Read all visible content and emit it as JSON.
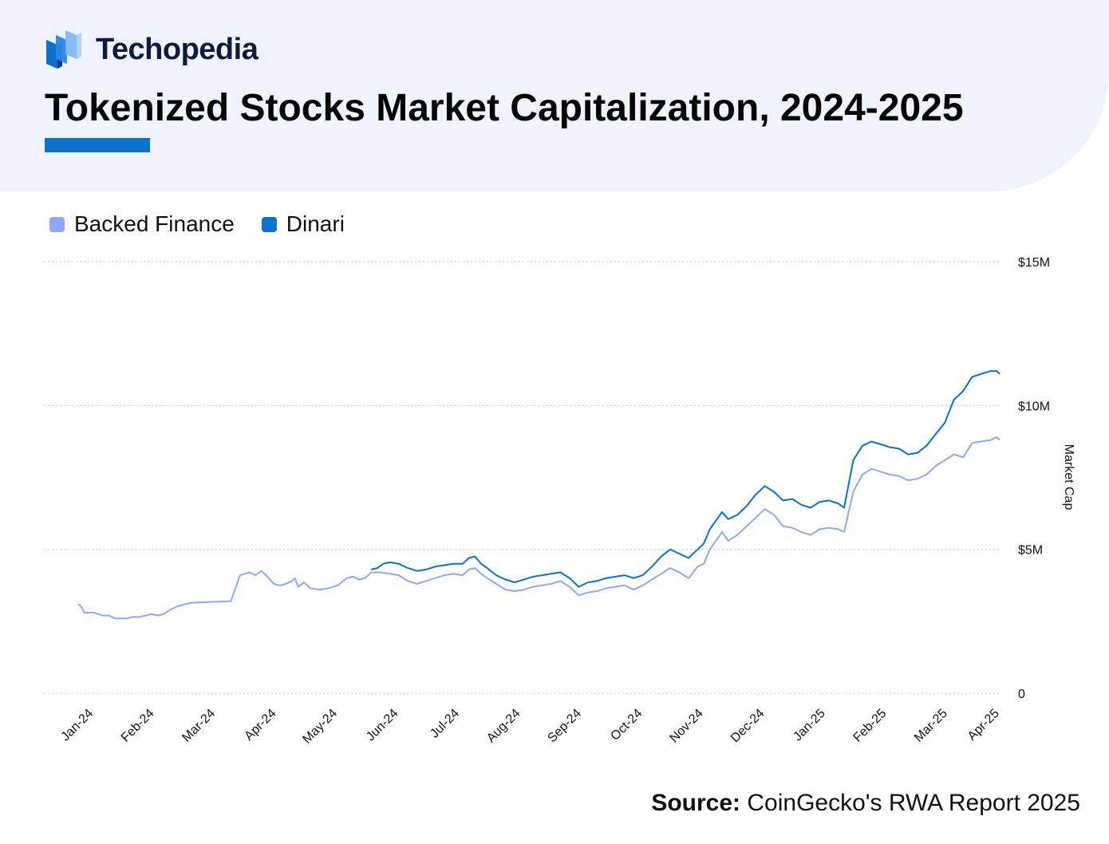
{
  "brand": {
    "name": "Techopedia"
  },
  "title": "Tokenized Stocks Market Capitalization, 2024-2025",
  "source": {
    "label": "Source:",
    "text": "CoinGecko's RWA Report 2025"
  },
  "colors": {
    "backed": "#8ca8f6",
    "dinari": "#0a72c8",
    "accent": "#0a72c8",
    "header_bg": "#eef3fd"
  },
  "chart_data": {
    "type": "line",
    "title": "Tokenized Stocks Market Capitalization, 2024-2025",
    "xlabel": "",
    "ylabel": "Market Cap",
    "ylim": [
      0,
      15
    ],
    "y_unit": "$M",
    "yticks": [
      {
        "value": 0,
        "label": "0"
      },
      {
        "value": 5,
        "label": "$5M"
      },
      {
        "value": 10,
        "label": "$10M"
      },
      {
        "value": 15,
        "label": "$15M"
      }
    ],
    "xlim": [
      0,
      15.6
    ],
    "xticks": [
      {
        "value": 0.75,
        "label": "Jan-24"
      },
      {
        "value": 1.75,
        "label": "Feb-24"
      },
      {
        "value": 2.75,
        "label": "Mar-24"
      },
      {
        "value": 3.75,
        "label": "Apr-24"
      },
      {
        "value": 4.75,
        "label": "May-24"
      },
      {
        "value": 5.75,
        "label": "Jun-24"
      },
      {
        "value": 6.75,
        "label": "Jul-24"
      },
      {
        "value": 7.75,
        "label": "Aug-24"
      },
      {
        "value": 8.75,
        "label": "Sep-24"
      },
      {
        "value": 9.75,
        "label": "Oct-24"
      },
      {
        "value": 10.75,
        "label": "Nov-24"
      },
      {
        "value": 11.75,
        "label": "Dec-24"
      },
      {
        "value": 12.75,
        "label": "Jan-25"
      },
      {
        "value": 13.75,
        "label": "Feb-25"
      },
      {
        "value": 14.75,
        "label": "Mar-25"
      },
      {
        "value": 15.6,
        "label": "Apr-25"
      }
    ],
    "grid": true,
    "legend_position": "top-left",
    "series": [
      {
        "name": "Backed Finance",
        "color": "#8ca8f6",
        "points": [
          [
            0.5,
            3.1
          ],
          [
            0.55,
            3.0
          ],
          [
            0.6,
            2.8
          ],
          [
            0.75,
            2.8
          ],
          [
            0.9,
            2.7
          ],
          [
            1.0,
            2.7
          ],
          [
            1.1,
            2.6
          ],
          [
            1.2,
            2.6
          ],
          [
            1.3,
            2.6
          ],
          [
            1.4,
            2.65
          ],
          [
            1.5,
            2.65
          ],
          [
            1.6,
            2.7
          ],
          [
            1.7,
            2.75
          ],
          [
            1.8,
            2.7
          ],
          [
            1.9,
            2.75
          ],
          [
            2.0,
            2.9
          ],
          [
            2.1,
            3.0
          ],
          [
            2.25,
            3.1
          ],
          [
            2.4,
            3.15
          ],
          [
            3.0,
            3.2
          ],
          [
            3.15,
            4.1
          ],
          [
            3.3,
            4.2
          ],
          [
            3.4,
            4.1
          ],
          [
            3.5,
            4.25
          ],
          [
            3.6,
            4.05
          ],
          [
            3.7,
            3.8
          ],
          [
            3.8,
            3.75
          ],
          [
            3.9,
            3.8
          ],
          [
            4.0,
            3.9
          ],
          [
            4.05,
            4.0
          ],
          [
            4.1,
            3.7
          ],
          [
            4.2,
            3.85
          ],
          [
            4.3,
            3.65
          ],
          [
            4.45,
            3.6
          ],
          [
            4.6,
            3.65
          ],
          [
            4.75,
            3.75
          ],
          [
            4.9,
            4.0
          ],
          [
            5.0,
            4.05
          ],
          [
            5.1,
            3.95
          ],
          [
            5.2,
            4.0
          ],
          [
            5.3,
            4.2
          ],
          [
            5.45,
            4.2
          ],
          [
            5.6,
            4.15
          ],
          [
            5.75,
            4.1
          ],
          [
            5.9,
            3.9
          ],
          [
            6.05,
            3.8
          ],
          [
            6.2,
            3.9
          ],
          [
            6.35,
            4.0
          ],
          [
            6.5,
            4.1
          ],
          [
            6.65,
            4.15
          ],
          [
            6.8,
            4.1
          ],
          [
            6.9,
            4.3
          ],
          [
            7.0,
            4.35
          ],
          [
            7.1,
            4.15
          ],
          [
            7.2,
            4.0
          ],
          [
            7.35,
            3.8
          ],
          [
            7.5,
            3.6
          ],
          [
            7.65,
            3.55
          ],
          [
            7.8,
            3.6
          ],
          [
            7.95,
            3.7
          ],
          [
            8.1,
            3.75
          ],
          [
            8.25,
            3.8
          ],
          [
            8.4,
            3.9
          ],
          [
            8.55,
            3.7
          ],
          [
            8.7,
            3.4
          ],
          [
            8.85,
            3.5
          ],
          [
            9.0,
            3.55
          ],
          [
            9.15,
            3.65
          ],
          [
            9.3,
            3.7
          ],
          [
            9.45,
            3.75
          ],
          [
            9.6,
            3.6
          ],
          [
            9.75,
            3.75
          ],
          [
            9.9,
            3.95
          ],
          [
            10.05,
            4.15
          ],
          [
            10.2,
            4.35
          ],
          [
            10.35,
            4.2
          ],
          [
            10.5,
            4.0
          ],
          [
            10.65,
            4.4
          ],
          [
            10.75,
            4.5
          ],
          [
            10.85,
            5.0
          ],
          [
            10.95,
            5.3
          ],
          [
            11.05,
            5.6
          ],
          [
            11.15,
            5.3
          ],
          [
            11.3,
            5.5
          ],
          [
            11.45,
            5.8
          ],
          [
            11.6,
            6.1
          ],
          [
            11.75,
            6.4
          ],
          [
            11.9,
            6.2
          ],
          [
            12.05,
            5.8
          ],
          [
            12.2,
            5.75
          ],
          [
            12.35,
            5.6
          ],
          [
            12.5,
            5.5
          ],
          [
            12.65,
            5.7
          ],
          [
            12.8,
            5.75
          ],
          [
            12.95,
            5.7
          ],
          [
            13.05,
            5.6
          ],
          [
            13.2,
            7.0
          ],
          [
            13.35,
            7.6
          ],
          [
            13.5,
            7.8
          ],
          [
            13.65,
            7.7
          ],
          [
            13.8,
            7.6
          ],
          [
            13.95,
            7.55
          ],
          [
            14.1,
            7.4
          ],
          [
            14.25,
            7.45
          ],
          [
            14.4,
            7.6
          ],
          [
            14.55,
            7.9
          ],
          [
            14.7,
            8.1
          ],
          [
            14.85,
            8.3
          ],
          [
            15.0,
            8.2
          ],
          [
            15.15,
            8.7
          ],
          [
            15.3,
            8.75
          ],
          [
            15.45,
            8.8
          ],
          [
            15.55,
            8.9
          ],
          [
            15.6,
            8.8
          ]
        ]
      },
      {
        "name": "Dinari",
        "color": "#0a72c8",
        "points": [
          [
            5.3,
            4.3
          ],
          [
            5.4,
            4.35
          ],
          [
            5.5,
            4.5
          ],
          [
            5.6,
            4.55
          ],
          [
            5.75,
            4.5
          ],
          [
            5.9,
            4.35
          ],
          [
            6.05,
            4.25
          ],
          [
            6.2,
            4.3
          ],
          [
            6.35,
            4.4
          ],
          [
            6.5,
            4.45
          ],
          [
            6.65,
            4.5
          ],
          [
            6.8,
            4.5
          ],
          [
            6.9,
            4.7
          ],
          [
            7.0,
            4.75
          ],
          [
            7.1,
            4.5
          ],
          [
            7.2,
            4.35
          ],
          [
            7.35,
            4.1
          ],
          [
            7.5,
            3.95
          ],
          [
            7.65,
            3.85
          ],
          [
            7.8,
            3.95
          ],
          [
            7.95,
            4.05
          ],
          [
            8.1,
            4.1
          ],
          [
            8.25,
            4.15
          ],
          [
            8.4,
            4.2
          ],
          [
            8.55,
            4.0
          ],
          [
            8.7,
            3.7
          ],
          [
            8.85,
            3.85
          ],
          [
            9.0,
            3.9
          ],
          [
            9.15,
            4.0
          ],
          [
            9.3,
            4.05
          ],
          [
            9.45,
            4.1
          ],
          [
            9.6,
            4.0
          ],
          [
            9.75,
            4.1
          ],
          [
            9.9,
            4.4
          ],
          [
            10.05,
            4.75
          ],
          [
            10.2,
            5.0
          ],
          [
            10.35,
            4.85
          ],
          [
            10.5,
            4.7
          ],
          [
            10.65,
            5.0
          ],
          [
            10.75,
            5.2
          ],
          [
            10.85,
            5.7
          ],
          [
            10.95,
            6.0
          ],
          [
            11.05,
            6.3
          ],
          [
            11.15,
            6.05
          ],
          [
            11.3,
            6.2
          ],
          [
            11.45,
            6.5
          ],
          [
            11.6,
            6.9
          ],
          [
            11.75,
            7.2
          ],
          [
            11.9,
            7.0
          ],
          [
            12.05,
            6.7
          ],
          [
            12.2,
            6.75
          ],
          [
            12.35,
            6.55
          ],
          [
            12.5,
            6.45
          ],
          [
            12.65,
            6.65
          ],
          [
            12.8,
            6.7
          ],
          [
            12.95,
            6.6
          ],
          [
            13.05,
            6.45
          ],
          [
            13.2,
            8.1
          ],
          [
            13.35,
            8.6
          ],
          [
            13.5,
            8.75
          ],
          [
            13.65,
            8.65
          ],
          [
            13.8,
            8.55
          ],
          [
            13.95,
            8.5
          ],
          [
            14.1,
            8.3
          ],
          [
            14.25,
            8.35
          ],
          [
            14.4,
            8.6
          ],
          [
            14.55,
            9.0
          ],
          [
            14.7,
            9.4
          ],
          [
            14.85,
            10.2
          ],
          [
            15.0,
            10.5
          ],
          [
            15.15,
            11.0
          ],
          [
            15.3,
            11.1
          ],
          [
            15.45,
            11.2
          ],
          [
            15.55,
            11.2
          ],
          [
            15.6,
            11.1
          ]
        ]
      }
    ]
  }
}
